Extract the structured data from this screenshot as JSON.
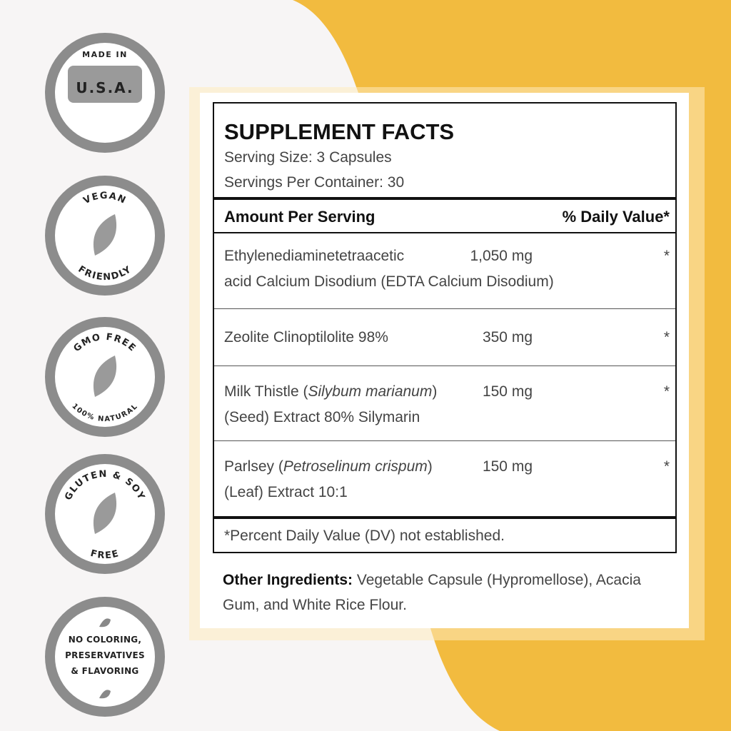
{
  "badges": [
    {
      "top": "MADE IN",
      "bottom": "U.S.A."
    },
    {
      "top": "VEGAN",
      "bottom": "FRIENDLY"
    },
    {
      "top": "GMO FREE",
      "bottom": "100% NATURAL"
    },
    {
      "top": "GLUTEN & SOY",
      "bottom": "FREE"
    },
    {
      "lines": [
        "NO COLORING,",
        "PRESERVATIVES",
        "& FLAVORING"
      ]
    }
  ],
  "facts": {
    "title": "SUPPLEMENT FACTS",
    "serving_size": "Serving Size: 3 Capsules",
    "servings_per_container": "Servings Per Container: 30",
    "header": {
      "left": "Amount Per Serving",
      "right": "% Daily Value*"
    },
    "rows": [
      {
        "lines": [
          [
            {
              "text": "Ethylenediaminetetraacetic"
            }
          ],
          [
            {
              "text": "acid Calcium Disodium (EDTA Calcium Disodium)"
            }
          ]
        ],
        "amount": "1,050 mg",
        "dv": "*"
      },
      {
        "lines": [
          [
            {
              "text": "Zeolite Clinoptilolite 98%"
            }
          ]
        ],
        "amount": "350 mg",
        "dv": "*"
      },
      {
        "lines": [
          [
            {
              "text": "Milk Thistle ("
            },
            {
              "text": "Silybum marianum",
              "italic": true
            },
            {
              "text": ")"
            }
          ],
          [
            {
              "text": "(Seed) Extract 80% Silymarin"
            }
          ]
        ],
        "amount": "150 mg",
        "dv": "*"
      },
      {
        "lines": [
          [
            {
              "text": "Parlsey ("
            },
            {
              "text": "Petroselinum crispum",
              "italic": true
            },
            {
              "text": ")"
            }
          ],
          [
            {
              "text": "(Leaf) Extract 10:1"
            }
          ]
        ],
        "amount": "150 mg",
        "dv": "*"
      }
    ],
    "footnote": "*Percent Daily Value (DV) not established.",
    "other_label": "Other Ingredients:",
    "other_text": "Vegetable Capsule (Hypromellose), Acacia Gum, and White Rice Flour."
  }
}
